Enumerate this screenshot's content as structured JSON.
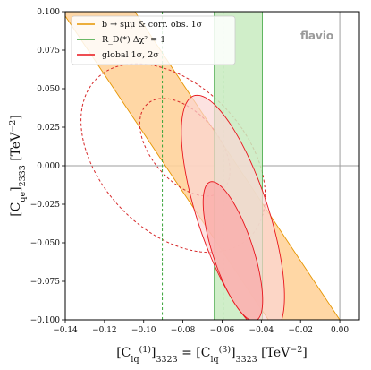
{
  "chart_data": {
    "type": "contour",
    "xlabel": "[C_lq^(1)]_3323 = [C_lq^(3)]_3323  [TeV⁻²]",
    "ylabel": "[C_qe]_2333  [TeV⁻²]",
    "xlim": [
      -0.14,
      0.01
    ],
    "ylim": [
      -0.1,
      0.1
    ],
    "x_ticks": [
      -0.14,
      -0.12,
      -0.1,
      -0.08,
      -0.06,
      -0.04,
      -0.02,
      0.0
    ],
    "x_tick_labels": [
      "−0.14",
      "−0.12",
      "−0.10",
      "−0.08",
      "−0.06",
      "−0.04",
      "−0.02",
      "0.00"
    ],
    "y_ticks": [
      -0.1,
      -0.075,
      -0.05,
      -0.025,
      0.0,
      0.025,
      0.05,
      0.075,
      0.1
    ],
    "y_tick_labels": [
      "−0.100",
      "−0.075",
      "−0.050",
      "−0.025",
      "0.000",
      "0.025",
      "0.050",
      "0.075",
      "0.100"
    ],
    "reference_lines": {
      "x": 0.0,
      "y": 0.0
    },
    "watermark": "flavio",
    "legend": {
      "position": "top-left",
      "entries": [
        {
          "label": "b → sμμ & corr. obs. 1σ",
          "color": "#e69500"
        },
        {
          "label": "R_D(*)  Δχ² = 1",
          "color": "#3aa43a"
        },
        {
          "label": "global 1σ, 2σ",
          "color": "#e8141b"
        }
      ]
    },
    "series": [
      {
        "name": "b → sμμ & corr. obs. 1σ",
        "kind": "band",
        "fill": "#ffd39b",
        "stroke": "#e69500",
        "points": [
          [
            -0.1415,
            0.1
          ],
          [
            -0.1045,
            0.1
          ],
          [
            0.0,
            -0.1
          ],
          [
            -0.0364,
            -0.1
          ]
        ]
      },
      {
        "name": "b → sμμ (dashed contour)",
        "kind": "ellipse",
        "stroke": "#d62728",
        "dashed": true,
        "center": [
          -0.085,
          0.005
        ],
        "semi_axes": [
          0.04,
          0.066
        ],
        "angle_deg": 28
      },
      {
        "name": "b → sμμ (dashed inner contour)",
        "kind": "ellipse",
        "stroke": "#d62728",
        "dashed": true,
        "center": [
          -0.079,
          0.012
        ],
        "semi_axes": [
          0.0185,
          0.0345
        ],
        "angle_deg": 28
      },
      {
        "name": "R_D(*)  Δχ² = 1",
        "kind": "vertical_band",
        "fill": "#c8ebc0",
        "stroke": "#3aa43a",
        "x_range": [
          -0.064,
          -0.0395
        ]
      },
      {
        "name": "R_D(*) dashed lines",
        "kind": "vertical_lines",
        "stroke": "#3aa43a",
        "dashed": true,
        "x": [
          -0.0905,
          -0.0595
        ]
      },
      {
        "name": "global 2σ",
        "kind": "ellipse",
        "fill": "#fbd6d4",
        "stroke": "#e8141b",
        "center": [
          -0.0545,
          -0.0315
        ],
        "semi_axes": [
          0.0185,
          0.0795
        ],
        "angle_deg": 14
      },
      {
        "name": "global 1σ",
        "kind": "ellipse",
        "fill": "#fbaaa8",
        "stroke": "#e8141b",
        "center": [
          -0.0545,
          -0.0555
        ],
        "semi_axes": [
          0.0105,
          0.0465
        ],
        "angle_deg": 14
      }
    ]
  }
}
